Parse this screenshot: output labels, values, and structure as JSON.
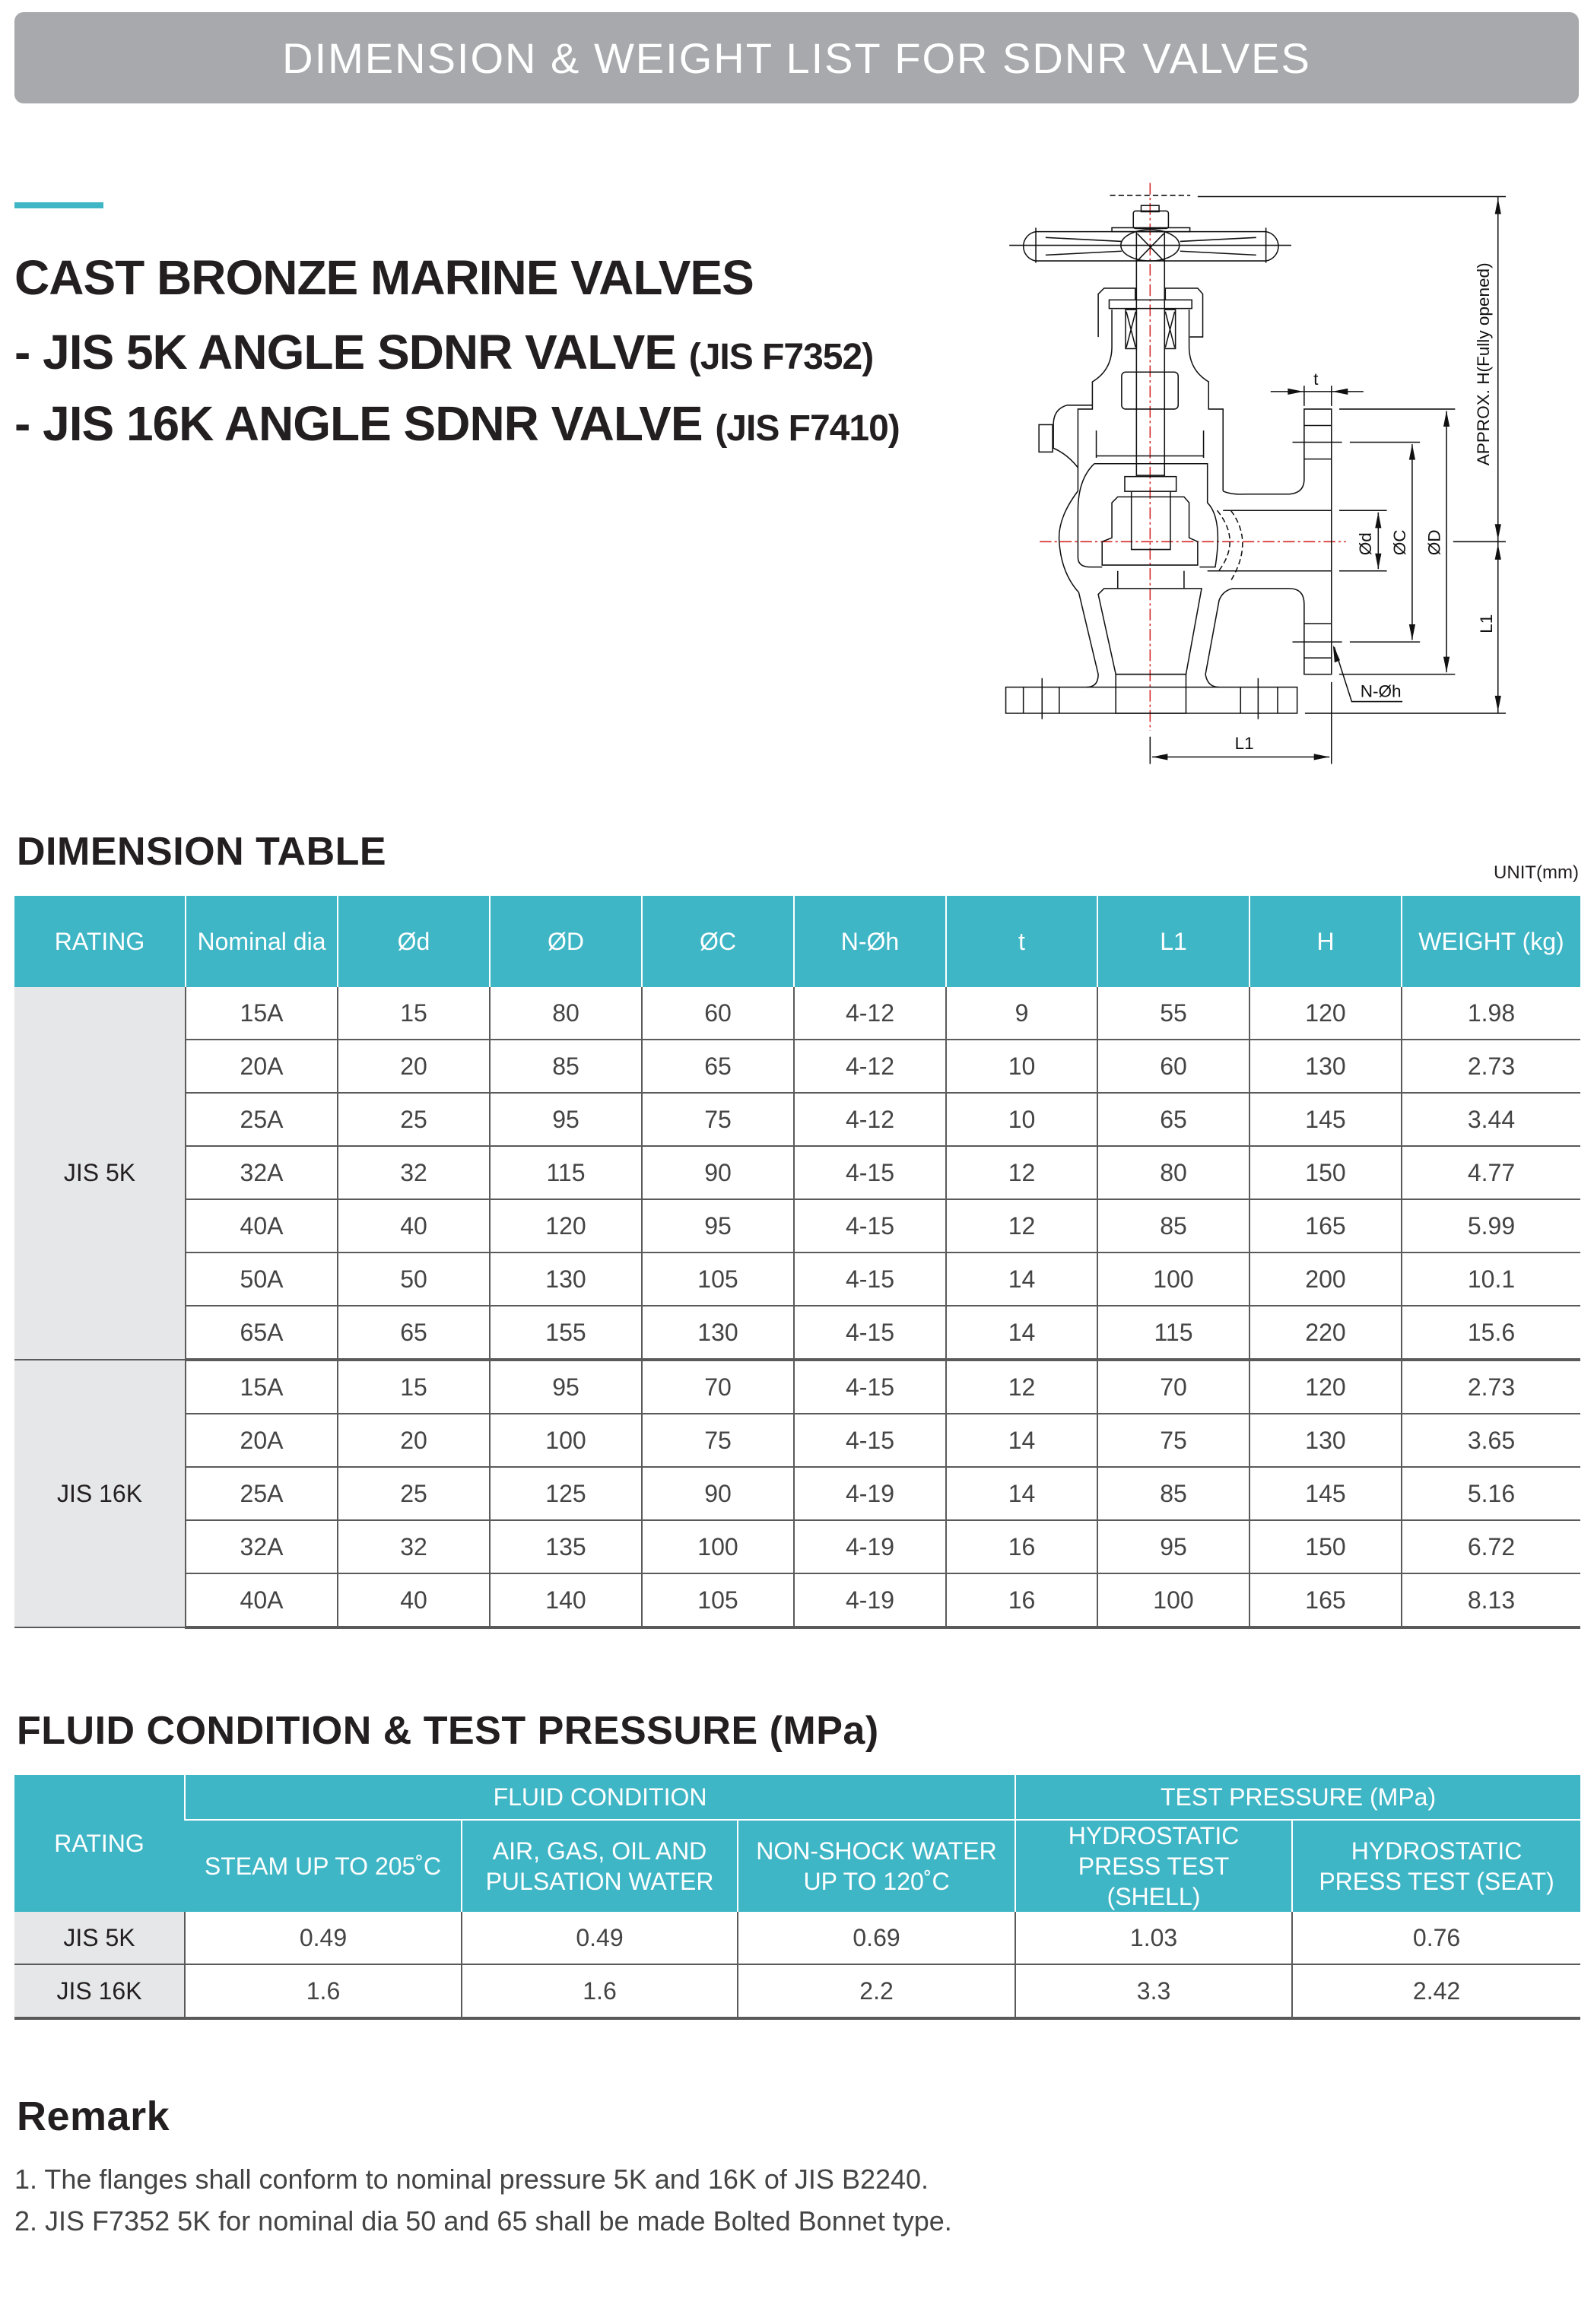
{
  "header": {
    "title": "DIMENSION & WEIGHT LIST FOR SDNR  VALVES"
  },
  "titles": {
    "line1": "CAST BRONZE MARINE VALVES",
    "line2": "- JIS 5K ANGLE SDNR VALVE",
    "line2_code": "(JIS F7352)",
    "line3": "- JIS 16K ANGLE SDNR VALVE",
    "line3_code": "(JIS F7410)"
  },
  "diagram": {
    "labels": {
      "height": "APPROX. H(Fully opened)",
      "t": "t",
      "d": "Ød",
      "C": "ØC",
      "D": "ØD",
      "L1_vertical": "L1",
      "holes": "N-Øh",
      "L1_horizontal": "L1"
    }
  },
  "dimension_table": {
    "heading": "DIMENSION TABLE",
    "unit": "UNIT(mm)",
    "columns": [
      "RATING",
      "Nominal dia",
      "Ød",
      "ØD",
      "ØC",
      "N-Øh",
      "t",
      "L1",
      "H",
      "WEIGHT (kg)"
    ],
    "groups": [
      {
        "rating": "JIS 5K",
        "rows": [
          [
            "15A",
            "15",
            "80",
            "60",
            "4-12",
            "9",
            "55",
            "120",
            "1.98"
          ],
          [
            "20A",
            "20",
            "85",
            "65",
            "4-12",
            "10",
            "60",
            "130",
            "2.73"
          ],
          [
            "25A",
            "25",
            "95",
            "75",
            "4-12",
            "10",
            "65",
            "145",
            "3.44"
          ],
          [
            "32A",
            "32",
            "115",
            "90",
            "4-15",
            "12",
            "80",
            "150",
            "4.77"
          ],
          [
            "40A",
            "40",
            "120",
            "95",
            "4-15",
            "12",
            "85",
            "165",
            "5.99"
          ],
          [
            "50A",
            "50",
            "130",
            "105",
            "4-15",
            "14",
            "100",
            "200",
            "10.1"
          ],
          [
            "65A",
            "65",
            "155",
            "130",
            "4-15",
            "14",
            "115",
            "220",
            "15.6"
          ]
        ]
      },
      {
        "rating": "JIS 16K",
        "rows": [
          [
            "15A",
            "15",
            "95",
            "70",
            "4-15",
            "12",
            "70",
            "120",
            "2.73"
          ],
          [
            "20A",
            "20",
            "100",
            "75",
            "4-15",
            "14",
            "75",
            "130",
            "3.65"
          ],
          [
            "25A",
            "25",
            "125",
            "90",
            "4-19",
            "14",
            "85",
            "145",
            "5.16"
          ],
          [
            "32A",
            "32",
            "135",
            "100",
            "4-19",
            "16",
            "95",
            "150",
            "6.72"
          ],
          [
            "40A",
            "40",
            "140",
            "105",
            "4-19",
            "16",
            "100",
            "165",
            "8.13"
          ]
        ]
      }
    ]
  },
  "fluid_table": {
    "heading": "FLUID CONDITION & TEST PRESSURE (MPa)",
    "rating_label": "RATING",
    "group_fluid": "FLUID CONDITION",
    "group_test": "TEST PRESSURE (MPa)",
    "columns": [
      "STEAM UP TO 205˚C",
      "AIR, GAS, OIL  AND PULSATION WATER",
      "NON-SHOCK WATER UP TO 120˚C",
      "HYDROSTATIC PRESS TEST (SHELL)",
      "HYDROSTATIC PRESS TEST (SEAT)"
    ],
    "rows": [
      {
        "rating": "JIS 5K",
        "values": [
          "0.49",
          "0.49",
          "0.69",
          "1.03",
          "0.76"
        ]
      },
      {
        "rating": "JIS 16K",
        "values": [
          "1.6",
          "1.6",
          "2.2",
          "3.3",
          "2.42"
        ]
      }
    ]
  },
  "remark": {
    "heading": "Remark",
    "items": [
      "1. The flanges shall conform to nominal pressure 5K and 16K of JIS B2240.",
      "2. JIS F7352 5K for nominal dia 50 and 65 shall be made Bolted Bonnet type."
    ]
  },
  "colors": {
    "accent": "#3fb6c6",
    "header_bar": "#a7a9ac",
    "rating_cell": "#e6e7e8",
    "centerline": "#d62828"
  }
}
